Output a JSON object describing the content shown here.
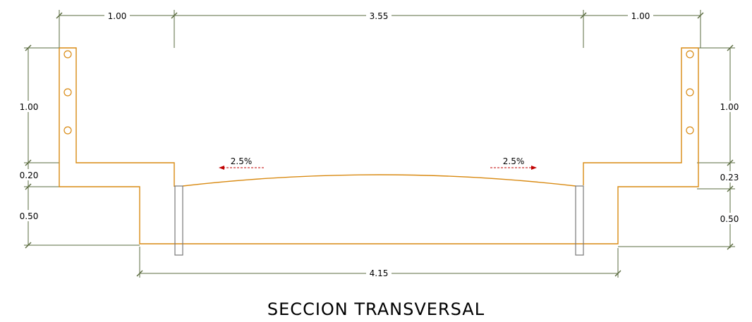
{
  "drawing": {
    "title": "SECCION TRANSVERSAL",
    "dimensions": {
      "top_left": "1.00",
      "top_center": "3.55",
      "top_right": "1.00",
      "left_barrier_height": "1.00",
      "left_slab": "0.20",
      "left_base": "0.50",
      "right_barrier_height": "1.00",
      "right_slab": "0.23",
      "right_base": "0.50",
      "bottom_width": "4.15"
    },
    "slopes": {
      "left": "2.5%",
      "right": "2.5%"
    },
    "colors": {
      "concrete": "#d98a12",
      "dimension": "#5a6b3f",
      "slope_arrow": "#c00000",
      "curb": "#777777"
    }
  }
}
